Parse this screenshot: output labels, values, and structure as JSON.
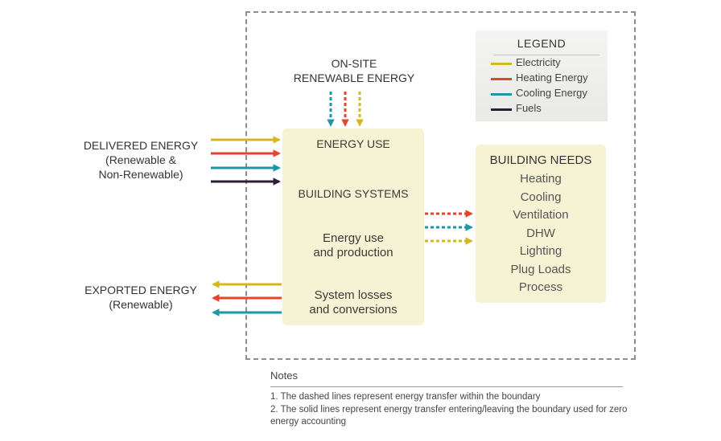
{
  "colors": {
    "electricity": "#d6b71e",
    "heating": "#e4452a",
    "cooling": "#1d97a6",
    "fuels": "#2b1f33",
    "box_fill": "#f6f3d4",
    "boundary": "#8e8e8e"
  },
  "legend": {
    "title": "LEGEND",
    "items": [
      {
        "label": "Electricity",
        "color_key": "electricity"
      },
      {
        "label": "Heating Energy",
        "color_key": "heating"
      },
      {
        "label": "Cooling Energy",
        "color_key": "cooling"
      },
      {
        "label": "Fuels",
        "color_key": "fuels"
      }
    ]
  },
  "onsite": {
    "line1": "ON-SITE",
    "line2": "RENEWABLE ENERGY"
  },
  "delivered": {
    "line1": "DELIVERED ENERGY",
    "line2": "(Renewable &",
    "line3": "Non-Renewable)"
  },
  "exported": {
    "line1": "EXPORTED ENERGY",
    "line2": "(Renewable)"
  },
  "main_box": {
    "energy_use": "ENERGY USE",
    "building_systems": "BUILDING SYSTEMS",
    "use_production_1": "Energy use",
    "use_production_2": "and production",
    "losses_1": "System losses",
    "losses_2": "and conversions"
  },
  "needs": {
    "title": "BUILDING NEEDS",
    "items": [
      "Heating",
      "Cooling",
      "Ventilation",
      "DHW",
      "Lighting",
      "Plug Loads",
      "Process"
    ]
  },
  "notes": {
    "title": "Notes",
    "items": [
      "1. The dashed lines represent energy transfer within the boundary",
      "2. The solid lines represent energy transfer entering/leaving the boundary used for zero energy accounting"
    ]
  }
}
